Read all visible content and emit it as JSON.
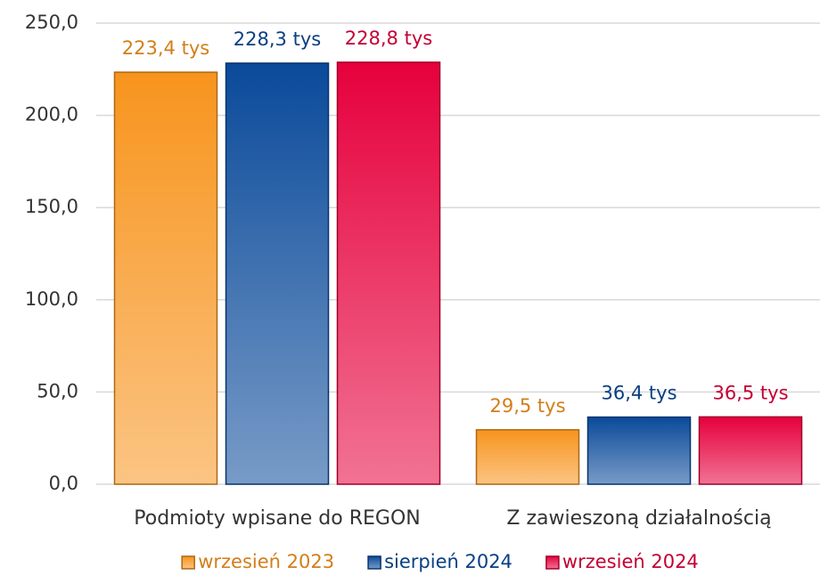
{
  "chart_data": {
    "type": "bar",
    "categories": [
      "Podmioty wpisane do REGON",
      "Z zawieszoną działalnością"
    ],
    "series": [
      {
        "name": "wrzesień 2023",
        "color": "#f7941d",
        "values": [
          223.4,
          29.5
        ],
        "value_labels": [
          "223,4 tys",
          "29,5 tys"
        ]
      },
      {
        "name": "sierpień 2024",
        "color": "#0a4a9a",
        "values": [
          228.3,
          36.4
        ],
        "value_labels": [
          "228,3 tys",
          "36,4 tys"
        ]
      },
      {
        "name": "wrzesień 2024",
        "color": "#e6003c",
        "values": [
          228.8,
          36.5
        ],
        "value_labels": [
          "228,8 tys",
          "36,5 tys"
        ]
      }
    ],
    "ylim": [
      0,
      250
    ],
    "yticks": [
      {
        "value": 0,
        "label": "0,0"
      },
      {
        "value": 50,
        "label": "50,0"
      },
      {
        "value": 100,
        "label": "100,0"
      },
      {
        "value": 150,
        "label": "150,0"
      },
      {
        "value": 200,
        "label": "200,0"
      },
      {
        "value": 250,
        "label": "250,0"
      }
    ],
    "grid": true,
    "legend": "bottom"
  }
}
